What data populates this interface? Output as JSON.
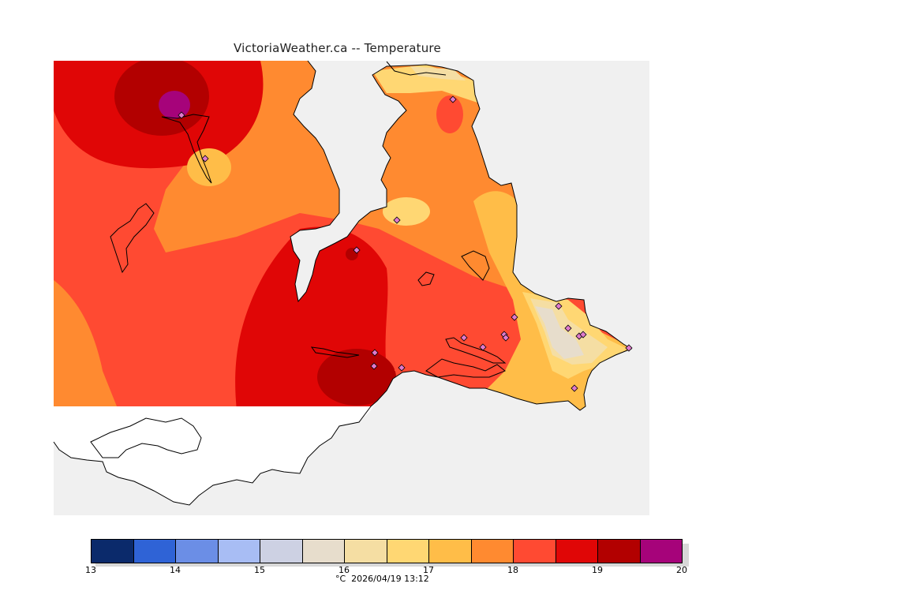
{
  "title": "VictoriaWeather.ca -- Temperature",
  "caption": "°C  2026/04/19 13:12",
  "colorbar": {
    "min": 13,
    "max": 20,
    "ticks": [
      "13",
      "14",
      "15",
      "16",
      "17",
      "18",
      "19",
      "20"
    ],
    "colors": [
      "#0b2a6b",
      "#2f63d6",
      "#6b8ee6",
      "#a8bdf4",
      "#cdd1e3",
      "#e7ddcc",
      "#f5dea3",
      "#ffd773",
      "#ffbd48",
      "#ff8a30",
      "#ff4a32",
      "#e00606",
      "#b20000",
      "#a6037a"
    ]
  },
  "map": {
    "background": "#f0f0f0",
    "coast_color": "#000000",
    "station_marker": "diamond"
  }
}
